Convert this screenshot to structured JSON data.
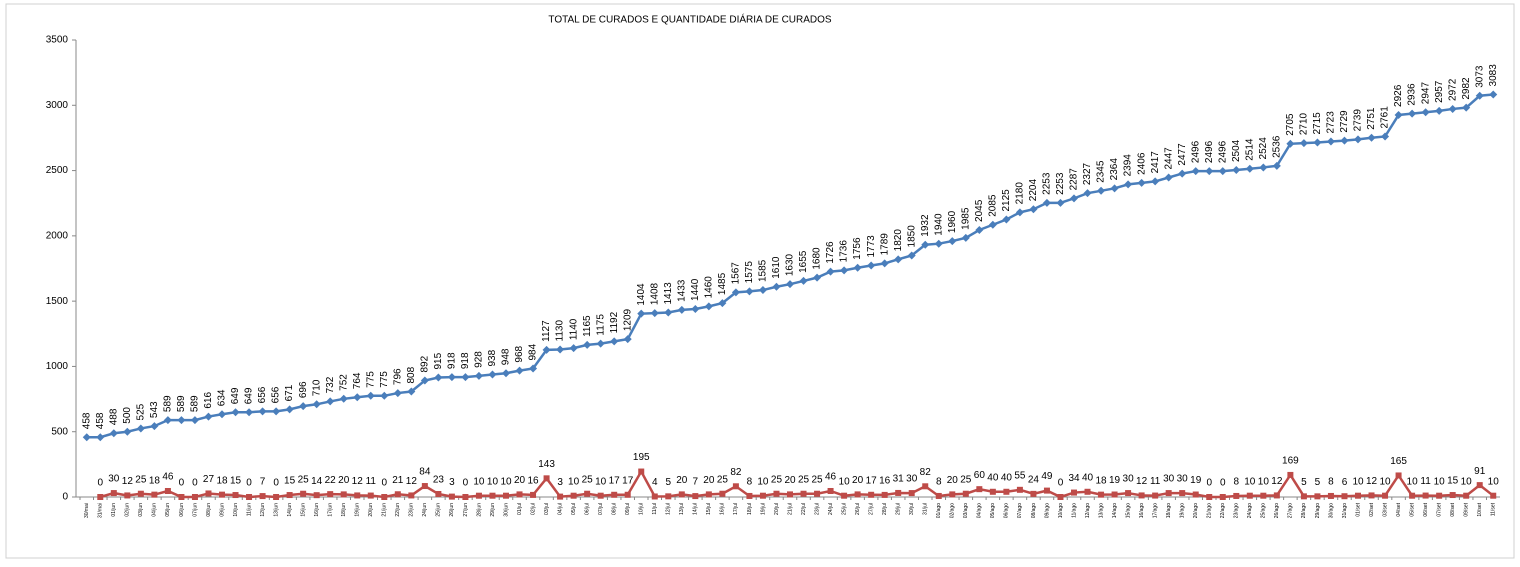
{
  "chart_data": {
    "type": "line",
    "title": "TOTAL DE CURADOS  E QUANTIDADE DIÁRIA DE CURADOS",
    "categories": [
      "30/mai",
      "31/mai",
      "01/jun",
      "02/jun",
      "03/jun",
      "04/jun",
      "05/jun",
      "06/jun",
      "07/jun",
      "08/jun",
      "09/jun",
      "10/jun",
      "11/jun",
      "12/jun",
      "13/jun",
      "14/jun",
      "15/jun",
      "16/jun",
      "17/jun",
      "18/jun",
      "19/jun",
      "20/jun",
      "21/jun",
      "22/jun",
      "23/jun",
      "24/jun",
      "25/jun",
      "26/jun",
      "27/jun",
      "28/jun",
      "29/jun",
      "30/jun",
      "01/jul",
      "02/jul",
      "03/jul",
      "04/jul",
      "05/jul",
      "06/jul",
      "07/jul",
      "08/jul",
      "09/jul",
      "10/jul",
      "11/jul",
      "12/jul",
      "13/jul",
      "14/jul",
      "15/jul",
      "16/jul",
      "17/jul",
      "18/jul",
      "19/jul",
      "20/jul",
      "21/jul",
      "22/jul",
      "23/jul",
      "24/jul",
      "25/jul",
      "26/jul",
      "27/jul",
      "28/jul",
      "29/jul",
      "30/jul",
      "31/jul",
      "01/ago",
      "02/ago",
      "03/ago",
      "04/ago",
      "05/ago",
      "06/ago",
      "07/ago",
      "08/ago",
      "09/ago",
      "10/ago",
      "11/ago",
      "12/ago",
      "13/ago",
      "14/ago",
      "15/ago",
      "16/ago",
      "17/ago",
      "18/ago",
      "19/ago",
      "20/ago",
      "21/ago",
      "22/ago",
      "23/ago",
      "24/ago",
      "25/ago",
      "26/ago",
      "27/ago",
      "28/ago",
      "29/ago",
      "30/ago",
      "31/ago",
      "01/set",
      "02/set",
      "03/set",
      "04/set",
      "05/set",
      "06/set",
      "07/set",
      "08/set",
      "09/set",
      "10/set",
      "11/set"
    ],
    "series": [
      {
        "name": "Total de curados",
        "color": "#4a7ebb",
        "marker": "diamond",
        "values": [
          458,
          458,
          488,
          500,
          525,
          543,
          589,
          589,
          589,
          616,
          634,
          649,
          649,
          656,
          656,
          671,
          696,
          710,
          732,
          752,
          764,
          775,
          775,
          796,
          808,
          892,
          915,
          918,
          918,
          928,
          938,
          948,
          968,
          984,
          1127,
          1130,
          1140,
          1165,
          1175,
          1192,
          1209,
          1404,
          1408,
          1413,
          1433,
          1440,
          1460,
          1485,
          1567,
          1575,
          1585,
          1610,
          1630,
          1655,
          1680,
          1726,
          1736,
          1756,
          1773,
          1789,
          1820,
          1850,
          1932,
          1940,
          1960,
          1985,
          2045,
          2085,
          2125,
          2180,
          2204,
          2253,
          2253,
          2287,
          2327,
          2345,
          2364,
          2394,
          2406,
          2417,
          2447,
          2477,
          2496,
          2496,
          2496,
          2504,
          2514,
          2524,
          2536,
          2705,
          2710,
          2715,
          2723,
          2729,
          2739,
          2751,
          2761,
          2926,
          2936,
          2947,
          2957,
          2972,
          2982,
          3073,
          3083
        ]
      },
      {
        "name": "Quantidade diária de curados",
        "color": "#be4b48",
        "marker": "square",
        "values": [
          null,
          0,
          30,
          12,
          25,
          18,
          46,
          0,
          0,
          27,
          18,
          15,
          0,
          7,
          0,
          15,
          25,
          14,
          22,
          20,
          12,
          11,
          0,
          21,
          12,
          84,
          23,
          3,
          0,
          10,
          10,
          10,
          20,
          16,
          143,
          3,
          10,
          25,
          10,
          17,
          17,
          195,
          4,
          5,
          20,
          7,
          20,
          25,
          82,
          8,
          10,
          25,
          20,
          25,
          25,
          46,
          10,
          20,
          17,
          16,
          31,
          30,
          82,
          8,
          20,
          25,
          60,
          40,
          40,
          55,
          24,
          49,
          0,
          34,
          40,
          18,
          19,
          30,
          12,
          11,
          30,
          30,
          19,
          0,
          0,
          8,
          10,
          10,
          12,
          169,
          5,
          5,
          8,
          6,
          10,
          12,
          10,
          165,
          10,
          11,
          10,
          15,
          10,
          91,
          10
        ]
      }
    ],
    "ylim": [
      0,
      3500
    ],
    "yticks": [
      0,
      500,
      1000,
      1500,
      2000,
      2500,
      3000,
      3500
    ],
    "grid": false
  }
}
